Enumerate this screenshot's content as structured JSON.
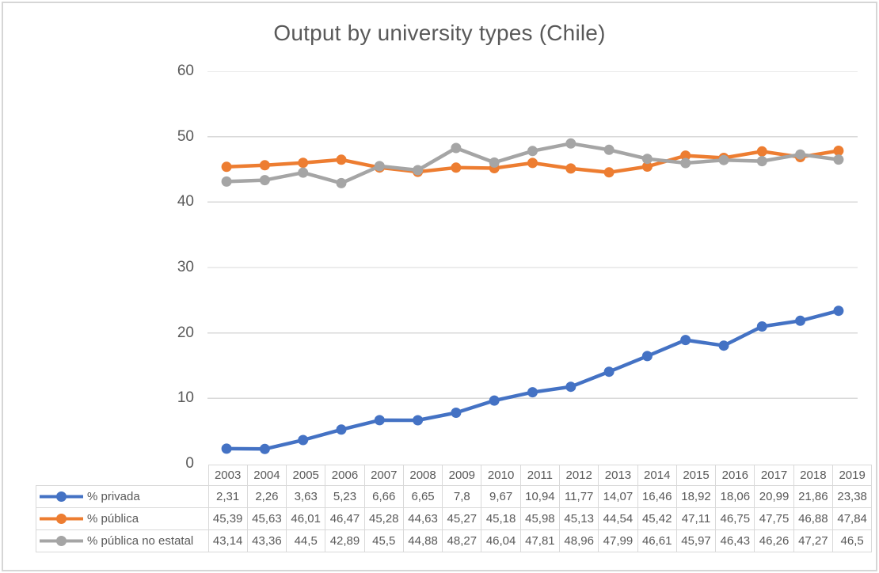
{
  "chart_data": {
    "type": "line",
    "title": "Output by university types (Chile)",
    "categories": [
      "2003",
      "2004",
      "2005",
      "2006",
      "2007",
      "2008",
      "2009",
      "2010",
      "2011",
      "2012",
      "2013",
      "2014",
      "2015",
      "2016",
      "2017",
      "2018",
      "2019"
    ],
    "series": [
      {
        "name": "% privada",
        "color": "#4472C4",
        "values": [
          2.31,
          2.26,
          3.63,
          5.23,
          6.66,
          6.65,
          7.8,
          9.67,
          10.94,
          11.77,
          14.07,
          16.46,
          18.92,
          18.06,
          20.99,
          21.86,
          23.38
        ]
      },
      {
        "name": "% pública",
        "color": "#ED7D31",
        "values": [
          45.39,
          45.63,
          46.01,
          46.47,
          45.28,
          44.63,
          45.27,
          45.18,
          45.98,
          45.13,
          44.54,
          45.42,
          47.11,
          46.75,
          47.75,
          46.88,
          47.84
        ]
      },
      {
        "name": "% pública no estatal",
        "color": "#A5A5A5",
        "values": [
          43.14,
          43.36,
          44.5,
          42.89,
          45.5,
          44.88,
          48.27,
          46.04,
          47.81,
          48.96,
          47.99,
          46.61,
          45.97,
          46.43,
          46.26,
          47.27,
          46.5
        ]
      }
    ],
    "xlabel": "",
    "ylabel": "",
    "ylim": [
      0,
      60
    ],
    "yticks": [
      0,
      10,
      20,
      30,
      40,
      50,
      60
    ],
    "grid": true,
    "legend_position": "data-table-left",
    "data_table_shown": true,
    "decimal_separator": ","
  },
  "colors": {
    "title_text": "#595959",
    "axis_text": "#595959",
    "table_text": "#595959",
    "gridline": "#d9d9d9",
    "table_border": "#d9d9d9",
    "frame_border": "#d6d6d6",
    "background": "#ffffff"
  }
}
